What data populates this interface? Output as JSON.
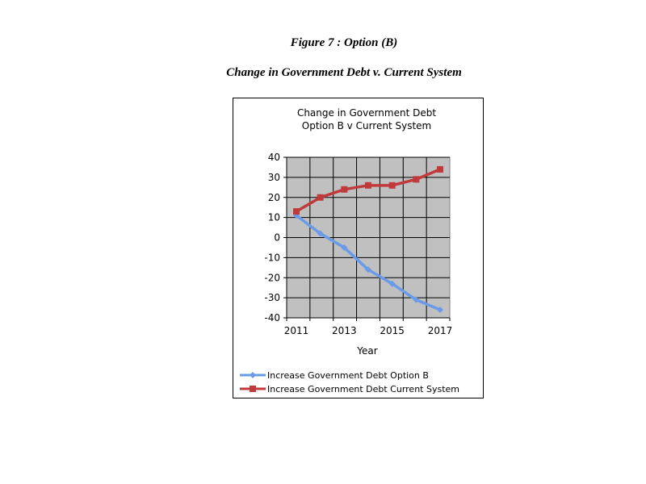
{
  "document": {
    "figure_title": "Figure 7 : Option (B)",
    "figure_caption": "Change in Government Debt v. Current System"
  },
  "chart_data": {
    "type": "line",
    "title_lines": [
      "Change in Government Debt",
      "Option B v Current System"
    ],
    "xlabel": "Year",
    "ylabel": "",
    "x": [
      2011,
      2012,
      2013,
      2014,
      2015,
      2016,
      2017
    ],
    "x_tick_labels": [
      "2011",
      "2013",
      "2015",
      "2017"
    ],
    "ylim": [
      -40,
      40
    ],
    "y_ticks": [
      40,
      30,
      20,
      10,
      0,
      -10,
      -20,
      -30,
      -40
    ],
    "grid": true,
    "plot_background": "#c0c0c0",
    "legend_position": "bottom",
    "series": [
      {
        "name": "Increase Government Debt Option B",
        "color": "#6a9be8",
        "marker": "diamond",
        "values": [
          11,
          2,
          -5,
          -16,
          -23,
          -31,
          -36
        ]
      },
      {
        "name": "Increase Government Debt Current System",
        "color": "#c0393b",
        "marker": "square",
        "values": [
          13,
          20,
          24,
          26,
          26,
          29,
          34
        ]
      }
    ]
  }
}
